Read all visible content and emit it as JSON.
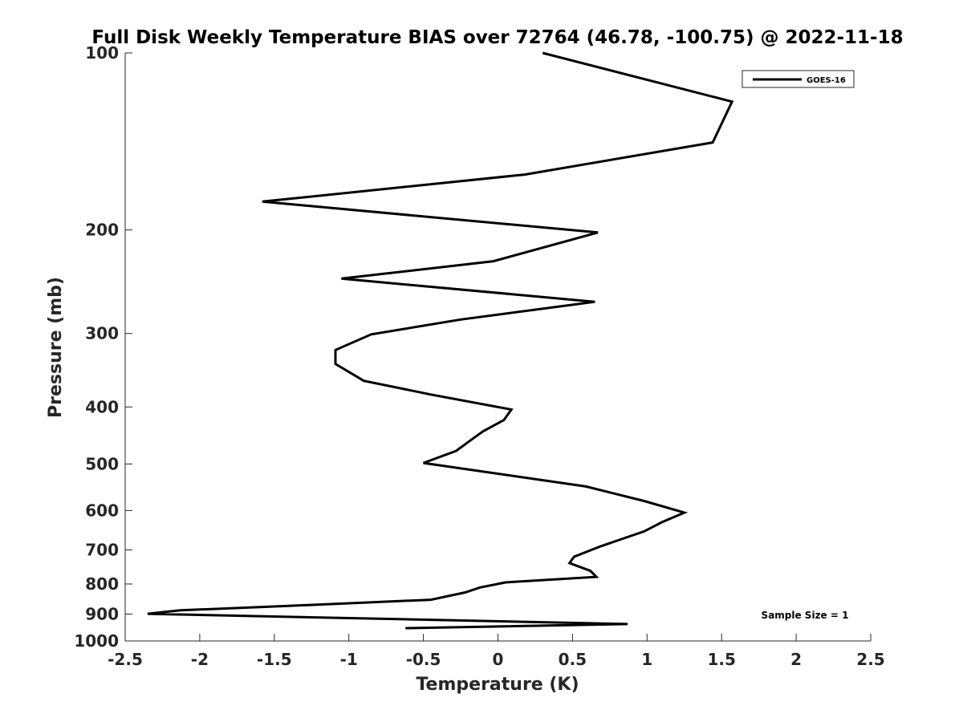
{
  "chart_data": {
    "type": "line",
    "title": "Full Disk Weekly Temperature BIAS over 72764 (46.78, -100.75) @ 2022-11-18",
    "xlabel": "Temperature (K)",
    "ylabel": "Pressure (mb)",
    "xlim": [
      -2.5,
      2.5
    ],
    "ylim": [
      100,
      1000
    ],
    "y_scale": "log",
    "y_reversed": true,
    "x_ticks": [
      -2.5,
      -2,
      -1.5,
      -1,
      -0.5,
      0,
      0.5,
      1,
      1.5,
      2,
      2.5
    ],
    "x_tick_labels": [
      "-2.5",
      "-2",
      "-1.5",
      "-1",
      "-0.5",
      "0",
      "0.5",
      "1",
      "1.5",
      "2",
      "2.5"
    ],
    "y_ticks": [
      100,
      200,
      300,
      400,
      500,
      600,
      700,
      800,
      900,
      1000
    ],
    "y_tick_labels": [
      "100",
      "200",
      "300",
      "400",
      "500",
      "600",
      "700",
      "800",
      "900",
      "1000"
    ],
    "legend_position": "top-right",
    "annotation": "Sample Size = 1",
    "series": [
      {
        "name": "GOES-16",
        "color": "#000000",
        "points": [
          {
            "x": 0.3,
            "p": 100
          },
          {
            "x": 1.57,
            "p": 121
          },
          {
            "x": 1.44,
            "p": 142
          },
          {
            "x": 0.18,
            "p": 161
          },
          {
            "x": -1.58,
            "p": 179
          },
          {
            "x": 0.67,
            "p": 202
          },
          {
            "x": -0.03,
            "p": 226
          },
          {
            "x": -1.05,
            "p": 242
          },
          {
            "x": 0.65,
            "p": 265
          },
          {
            "x": -0.25,
            "p": 284
          },
          {
            "x": -0.85,
            "p": 301
          },
          {
            "x": -1.09,
            "p": 320
          },
          {
            "x": -1.09,
            "p": 338
          },
          {
            "x": -0.9,
            "p": 361
          },
          {
            "x": -0.45,
            "p": 381
          },
          {
            "x": 0.09,
            "p": 404
          },
          {
            "x": 0.04,
            "p": 421
          },
          {
            "x": -0.1,
            "p": 440
          },
          {
            "x": -0.18,
            "p": 455
          },
          {
            "x": -0.28,
            "p": 475
          },
          {
            "x": -0.5,
            "p": 498
          },
          {
            "x": 0.59,
            "p": 546
          },
          {
            "x": 0.98,
            "p": 578
          },
          {
            "x": 1.25,
            "p": 605
          },
          {
            "x": 1.1,
            "p": 628
          },
          {
            "x": 0.98,
            "p": 651
          },
          {
            "x": 0.69,
            "p": 690
          },
          {
            "x": 0.51,
            "p": 719
          },
          {
            "x": 0.48,
            "p": 737
          },
          {
            "x": 0.62,
            "p": 760
          },
          {
            "x": 0.66,
            "p": 778
          },
          {
            "x": 0.05,
            "p": 795
          },
          {
            "x": -0.12,
            "p": 811
          },
          {
            "x": -0.22,
            "p": 827
          },
          {
            "x": -0.45,
            "p": 851
          },
          {
            "x": -1.42,
            "p": 872
          },
          {
            "x": -2.13,
            "p": 887
          },
          {
            "x": -2.35,
            "p": 899
          },
          {
            "x": 0.87,
            "p": 936
          },
          {
            "x": -0.62,
            "p": 951
          }
        ]
      }
    ]
  }
}
